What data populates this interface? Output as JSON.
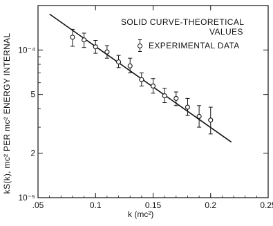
{
  "chart_data": {
    "type": "scatter",
    "title": "",
    "xlabel": "k (mc²)",
    "ylabel": "kS(k), mc² PER mc² ENERGY INTERNAL",
    "xlim": [
      0.05,
      0.25
    ],
    "ylim": [
      1e-05,
      0.0002
    ],
    "y_scale": "log",
    "grid": false,
    "x_ticks": [
      {
        "value": 0.05,
        "label": ".05"
      },
      {
        "value": 0.1,
        "label": "0.1"
      },
      {
        "value": 0.15,
        "label": "0.15"
      },
      {
        "value": 0.2,
        "label": "0.2"
      },
      {
        "value": 0.25,
        "label": "0.25"
      }
    ],
    "y_ticks": [
      {
        "value": 0.0002,
        "label": ""
      },
      {
        "value": 0.0001,
        "label": "10⁻⁴"
      },
      {
        "value": 5e-05,
        "label": "5"
      },
      {
        "value": 2e-05,
        "label": "2"
      },
      {
        "value": 1e-05,
        "label": "10⁻⁵"
      }
    ],
    "legend": {
      "placement": "top-right",
      "line1": "SOLID CURVE-THEORETICAL",
      "line2": "VALUES",
      "line3": "EXPERIMENTAL DATA"
    },
    "series": [
      {
        "name": "EXPERIMENTAL DATA",
        "kind": "points-with-error-bars",
        "points": [
          {
            "x": 0.08,
            "y": 0.000122,
            "err_low": 0.000106,
            "err_high": 0.000138
          },
          {
            "x": 0.09,
            "y": 0.000117,
            "err_low": 0.000104,
            "err_high": 0.00013
          },
          {
            "x": 0.1,
            "y": 0.000105,
            "err_low": 9.5e-05,
            "err_high": 0.000116
          },
          {
            "x": 0.11,
            "y": 9.7e-05,
            "err_low": 8.8e-05,
            "err_high": 0.000107
          },
          {
            "x": 0.12,
            "y": 8.3e-05,
            "err_low": 7.6e-05,
            "err_high": 9.2e-05
          },
          {
            "x": 0.13,
            "y": 7.8e-05,
            "err_low": 7e-05,
            "err_high": 8.8e-05
          },
          {
            "x": 0.14,
            "y": 6.3e-05,
            "err_low": 5.7e-05,
            "err_high": 7e-05
          },
          {
            "x": 0.15,
            "y": 5.7e-05,
            "err_low": 5.1e-05,
            "err_high": 6.4e-05
          },
          {
            "x": 0.16,
            "y": 4.9e-05,
            "err_low": 4.4e-05,
            "err_high": 5.5e-05
          },
          {
            "x": 0.17,
            "y": 4.7e-05,
            "err_low": 4.2e-05,
            "err_high": 5.2e-05
          },
          {
            "x": 0.18,
            "y": 4.1e-05,
            "err_low": 3.6e-05,
            "err_high": 4.7e-05
          },
          {
            "x": 0.19,
            "y": 3.55e-05,
            "err_low": 3e-05,
            "err_high": 4.2e-05
          },
          {
            "x": 0.2,
            "y": 3.35e-05,
            "err_low": 2.7e-05,
            "err_high": 4.1e-05
          }
        ]
      },
      {
        "name": "SOLID CURVE-THEORETICAL VALUES",
        "kind": "line",
        "points": [
          {
            "x": 0.06,
            "y": 0.000175
          },
          {
            "x": 0.218,
            "y": 2.38e-05
          }
        ]
      }
    ]
  }
}
